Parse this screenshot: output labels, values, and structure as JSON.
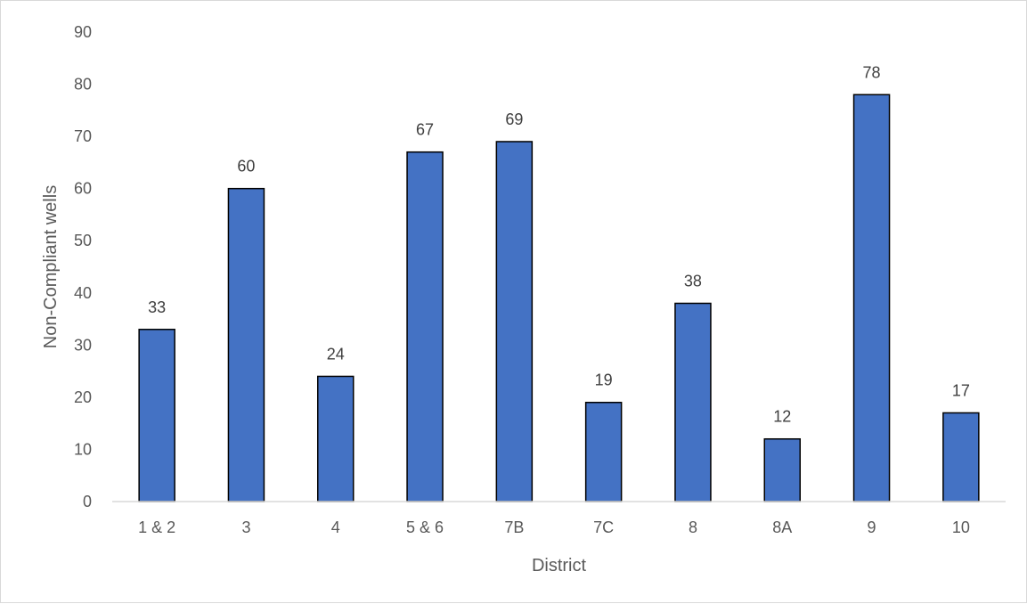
{
  "chart_data": {
    "type": "bar",
    "title": "",
    "xlabel": "District",
    "ylabel": "Non-Compliant wells",
    "categories": [
      "1 & 2",
      "3",
      "4",
      "5 & 6",
      "7B",
      "7C",
      "8",
      "8A",
      "9",
      "10"
    ],
    "values": [
      33,
      60,
      24,
      67,
      69,
      19,
      38,
      12,
      78,
      17
    ],
    "ylim": [
      0,
      90
    ],
    "yticks": [
      0,
      10,
      20,
      30,
      40,
      50,
      60,
      70,
      80,
      90
    ],
    "grid": false,
    "legend": "none",
    "data_labels": true,
    "colors": {
      "bar_fill": "#4472C4",
      "bar_stroke": "#000000",
      "axis_line": "#d9d9d9"
    }
  }
}
